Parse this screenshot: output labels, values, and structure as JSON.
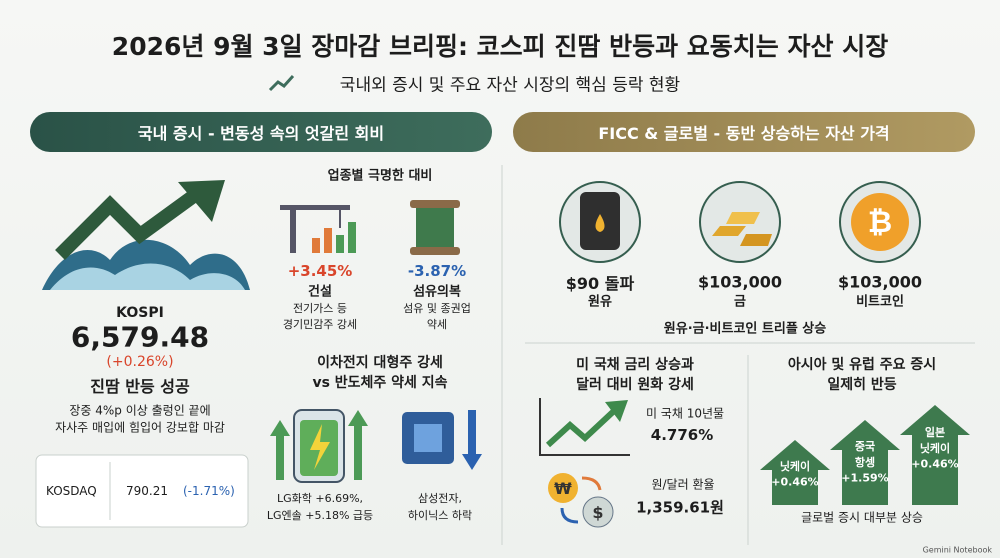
{
  "header": {
    "title": "2026년 9월 3일 장마감 브리핑: 코스피 진땀 반등과 요동치는 자산 시장",
    "subtitle": "국내외 증시 및 주요 자산 시장의 핵심 등락 현황"
  },
  "left": {
    "banner": "국내 증시 - 변동성 속의 엇갈린 회비",
    "kospi": {
      "label": "KOSPI",
      "value": "6,579.48",
      "change": "(+0.26%)",
      "headline": "진땀 반등 성공",
      "desc": [
        "장중 4%p 이상 출렁인 끝에",
        "자사주 매입에 힘입어 강보합 마감"
      ]
    },
    "kosdaq": {
      "label": "KOSDAQ",
      "value": "790.21",
      "change": "(-1.71%)"
    },
    "sectors": {
      "title": "업종별 극명한 대비",
      "items": [
        {
          "change": "+3.45%",
          "name": "건설",
          "desc": [
            "전기가스 등",
            "경기민감주 강세"
          ]
        },
        {
          "change": "-3.87%",
          "name": "섬유의복",
          "desc": [
            "섬유 및 종권업",
            "약세"
          ]
        }
      ]
    },
    "battery": {
      "title": [
        "이차전지 대형주 강세",
        "vs 반도체주 약세 지속"
      ],
      "up": [
        "LG화학 +6.69%,",
        "LG엔솔 +5.18% 급등"
      ],
      "down": [
        "삼성전자,",
        "하이닉스 하락"
      ]
    }
  },
  "right": {
    "banner": "FICC & 글로벌 - 동반 상승하는 자산 가격",
    "assets": [
      {
        "value": "$90 돌파",
        "name": "원유"
      },
      {
        "value": "$103,000",
        "name": "금"
      },
      {
        "value": "$103,000",
        "name": "비트코인"
      }
    ],
    "assets_caption": "원유·금·비트코인 트리플 상승",
    "rates": {
      "title": [
        "미 국채 금리 상승과",
        "달러 대비 원화 강세"
      ],
      "treasury": {
        "label": "미 국채 10년물",
        "value": "4.776%"
      },
      "fx": {
        "label": "원/달러 환율",
        "value": "1,359.61원"
      }
    },
    "global": {
      "title": [
        "아시아 및 유럽 주요 증시",
        "일제히 반등"
      ],
      "arrows": [
        {
          "name": [
            "닛케이"
          ],
          "change": "+0.46%"
        },
        {
          "name": [
            "중국",
            "항셍"
          ],
          "change": "+1.59%"
        },
        {
          "name": [
            "일본",
            "닛케이"
          ],
          "change": "+0.46%"
        }
      ],
      "caption": "글로벌 증시 대부분 상승"
    }
  },
  "footer": "Gemini Notebook"
}
